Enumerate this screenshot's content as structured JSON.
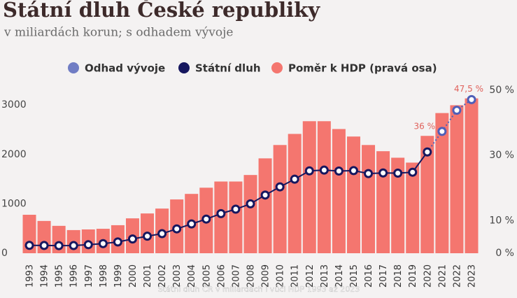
{
  "chart_data": {
    "type": "bar-line",
    "title": "Státní dluh České republiky",
    "subtitle": "v miliardách korun; s odhadem vývoje",
    "caption": "Státní dluh ČR v miliardách i vůči HDP 1993 až 2023",
    "categories": [
      "1993",
      "1994",
      "1995",
      "1996",
      "1997",
      "1998",
      "1999",
      "2000",
      "2001",
      "2002",
      "2003",
      "2004",
      "2005",
      "2006",
      "2007",
      "2008",
      "2009",
      "2010",
      "2011",
      "2012",
      "2013",
      "2014",
      "2015",
      "2016",
      "2017",
      "2018",
      "2019",
      "2020",
      "2021",
      "2022",
      "2023"
    ],
    "series": [
      {
        "name": "Odhad vývoje",
        "color": "#4f5fb8",
        "axis": "y",
        "values": [
          null,
          null,
          null,
          null,
          null,
          null,
          null,
          null,
          null,
          null,
          null,
          null,
          null,
          null,
          null,
          null,
          null,
          null,
          null,
          null,
          null,
          null,
          null,
          null,
          null,
          null,
          null,
          null,
          2466,
          2895,
          3111
        ]
      },
      {
        "name": "Státní dluh",
        "color": "#16175f",
        "axis": "y",
        "values": [
          159,
          157,
          154,
          155,
          173,
          195,
          228,
          289,
          345,
          396,
          493,
          593,
          691,
          802,
          892,
          1000,
          1178,
          1344,
          1499,
          1668,
          1683,
          1664,
          1673,
          1613,
          1625,
          1622,
          1640,
          2050,
          null,
          null,
          null
        ]
      },
      {
        "name": "Poměr k HDP (pravá osa)",
        "color": "#f4766f",
        "axis": "y2",
        "values": [
          11.8,
          9.9,
          8.4,
          7.1,
          7.3,
          7.5,
          8.6,
          10.7,
          12.2,
          13.7,
          16.5,
          18.2,
          20.1,
          22,
          22,
          24,
          29.1,
          33.2,
          36.6,
          40.5,
          40.5,
          38.1,
          35.8,
          33.2,
          31.3,
          29.3,
          27.8,
          36,
          43,
          45.4,
          47.5
        ],
        "value_labels": [
          null,
          null,
          null,
          null,
          null,
          null,
          null,
          null,
          null,
          null,
          null,
          null,
          null,
          null,
          null,
          null,
          null,
          null,
          null,
          null,
          null,
          null,
          null,
          null,
          null,
          null,
          null,
          "36 %",
          null,
          null,
          "47,5 %"
        ]
      }
    ],
    "ylim": [
      0,
      3300
    ],
    "yticks": [
      0,
      1000,
      2000,
      3000
    ],
    "y2lim": [
      0,
      50
    ],
    "y2ticks": [
      {
        "value": 0,
        "label": "0 %"
      },
      {
        "value": 10,
        "label": "10 %"
      },
      {
        "value": 30,
        "label": "30 %"
      },
      {
        "value": 50,
        "label": "50 %"
      }
    ]
  }
}
